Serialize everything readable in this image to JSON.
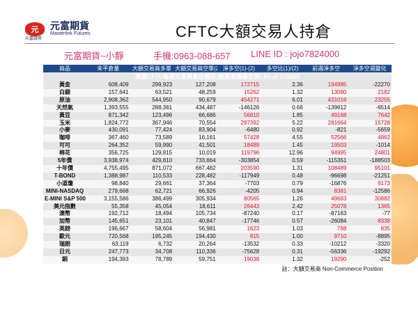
{
  "header": {
    "logo_mark": "元",
    "logo_sub": "元富證券",
    "brand_name": "元富期貨",
    "brand_en": "Masterlink Futures",
    "title": "CFTC大額交易人持倉"
  },
  "contact": {
    "agent": "元富期貨~小靜",
    "phone": "手機:0963-088-657",
    "line": "LINE ID : jojo7824000"
  },
  "table": {
    "caption": "美國CFTC每週交易員倉位報告(期貨選擇權合併) As of  210928",
    "columns": [
      "商品",
      "未平倉量",
      "大額交易商多單",
      "大額交易商空單(2)",
      "淨多空(1)-(2)",
      "多空比(1)/(2)",
      "前週淨多空",
      "淨多空週變化"
    ],
    "rows": [
      [
        "黃金",
        "608,409",
        "299,923",
        "127,208",
        "172715",
        "2.36",
        "194985",
        "-22270"
      ],
      [
        "白銀",
        "157,641",
        "63,521",
        "48,259",
        "15262",
        "1.32",
        "13080",
        "2182"
      ],
      [
        "原油",
        "2,908,362",
        "544,950",
        "90,679",
        "454271",
        "6.01",
        "431016",
        "23255"
      ],
      [
        "天然氣",
        "1,393,555",
        "288,361",
        "434,487",
        "-146126",
        "0.66",
        "-139612",
        "-6514"
      ],
      [
        "黃豆",
        "871,342",
        "123,496",
        "66,686",
        "56810",
        "1.85",
        "49168",
        "7642"
      ],
      [
        "玉米",
        "1,824,772",
        "367,946",
        "70,554",
        "297392",
        "5.22",
        "281664",
        "15728"
      ],
      [
        "小麥",
        "430,091",
        "77,424",
        "83,904",
        "-6480",
        "0.92",
        "-821",
        "-5659"
      ],
      [
        "咖啡",
        "367,460",
        "73,589",
        "16,161",
        "57428",
        "4.55",
        "52566",
        "4862"
      ],
      [
        "可可",
        "264,352",
        "59,990",
        "41,501",
        "18489",
        "1.45",
        "19503",
        "-1014"
      ],
      [
        "棉花",
        "356,725",
        "129,815",
        "10,019",
        "119796",
        "12.96",
        "94995",
        "24801"
      ],
      [
        "5年債",
        "3,938,974",
        "429,810",
        "733,664",
        "-303854",
        "0.59",
        "-115351",
        "-188503"
      ],
      [
        "十年債",
        "4,755,495",
        "871,072",
        "667,482",
        "203590",
        "1.31",
        "108489",
        "95101"
      ],
      [
        "T-BOND",
        "1,388,987",
        "110,533",
        "228,482",
        "-117949",
        "0.48",
        "-96698",
        "-21251"
      ],
      [
        "小道瓊",
        "98,840",
        "29,661",
        "37,364",
        "-7703",
        "0.79",
        "-16876",
        "9173"
      ],
      [
        "MINI-NASDAQ",
        "279,668",
        "62,721",
        "66,926",
        "-4205",
        "0.94",
        "8381",
        "-12586"
      ],
      [
        "E-MINI S&P 500",
        "3,155,586",
        "386,499",
        "305,934",
        "80565",
        "1.26",
        "49683",
        "30882"
      ],
      [
        "美元指數",
        "55,358",
        "45,054",
        "18,611",
        "26443",
        "2.42",
        "25078",
        "1365"
      ],
      [
        "澳幣",
        "192,712",
        "18,494",
        "105,734",
        "-87240",
        "0.17",
        "-87163",
        "-77"
      ],
      [
        "加幣",
        "145,651",
        "23,101",
        "40,847",
        "-17746",
        "0.57",
        "-26084",
        "8338"
      ],
      [
        "英鎊",
        "196,667",
        "58,604",
        "56,981",
        "1623",
        "1.03",
        "788",
        "835"
      ],
      [
        "歐元",
        "720,568",
        "195,245",
        "194,430",
        "815",
        "1.00",
        "9710",
        "-8895"
      ],
      [
        "瑞朗",
        "63,119",
        "6,732",
        "20,264",
        "-13532",
        "0.33",
        "-10212",
        "-3320"
      ],
      [
        "日元",
        "247,773",
        "34,708",
        "110,336",
        "-75628",
        "0.31",
        "-56336",
        "-19292"
      ],
      [
        "銅",
        "194,393",
        "78,789",
        "59,751",
        "19038",
        "1.32",
        "19290",
        "-252"
      ]
    ],
    "note": "註：大額交易商 Non-Commerce Position"
  },
  "colors": {
    "header_bg": "#1e4a8c",
    "caption_bg": "#15306b",
    "positive": "#e0102a",
    "contact_text": "#d03a6a"
  }
}
